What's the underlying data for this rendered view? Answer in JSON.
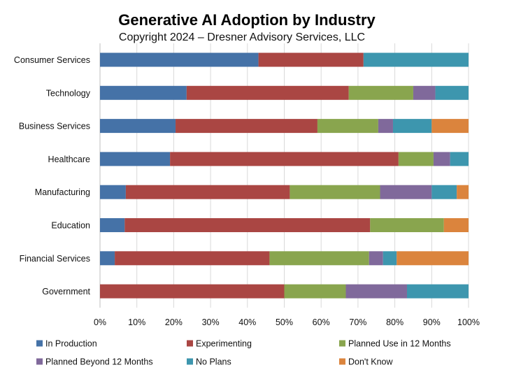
{
  "chart_data": {
    "type": "bar",
    "orientation": "horizontal",
    "stacked": true,
    "title": "Generative AI Adoption by Industry",
    "subtitle": "Copyright 2024 – Dresner Advisory Services, LLC",
    "xlabel": "",
    "ylabel": "",
    "xlim": [
      0,
      100
    ],
    "x_ticks": [
      "0%",
      "10%",
      "20%",
      "30%",
      "40%",
      "50%",
      "60%",
      "70%",
      "80%",
      "90%",
      "100%"
    ],
    "grid": true,
    "legend_position": "bottom",
    "categories": [
      "Consumer Services",
      "Technology",
      "Business Services",
      "Healthcare",
      "Manufacturing",
      "Education",
      "Financial Services",
      "Government"
    ],
    "series": [
      {
        "name": "In Production",
        "color": "#4572A7",
        "values": [
          43,
          23.5,
          20.5,
          19,
          7,
          6.7,
          4,
          0
        ]
      },
      {
        "name": "Experimenting",
        "color": "#AA4643",
        "values": [
          28.5,
          44,
          38.5,
          62,
          44.5,
          66.6,
          42,
          50
        ]
      },
      {
        "name": "Planned Use in 12 Months",
        "color": "#89A54E",
        "values": [
          0,
          17.5,
          16.5,
          9.5,
          24.5,
          20,
          27,
          16.7
        ]
      },
      {
        "name": "Planned Beyond 12 Months",
        "color": "#80699B",
        "values": [
          0,
          6,
          4,
          4.5,
          14,
          0,
          3.8,
          16.6
        ]
      },
      {
        "name": "No Plans",
        "color": "#3D96AE",
        "values": [
          28.5,
          9,
          10.5,
          5,
          6.8,
          0,
          3.7,
          16.7
        ]
      },
      {
        "name": "Don't Know",
        "color": "#DB843D",
        "values": [
          0,
          0,
          10,
          0,
          3.2,
          6.7,
          19.5,
          0
        ]
      }
    ]
  }
}
